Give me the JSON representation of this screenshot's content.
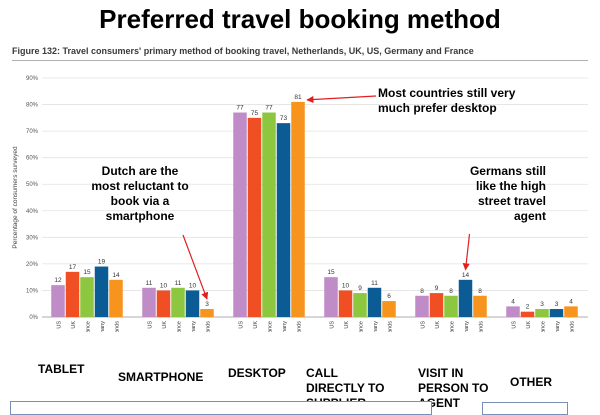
{
  "slide": {
    "title": "Preferred travel booking method",
    "figure_caption": "Figure 132: Travel consumers' primary method of booking travel, Netherlands, UK, US, Germany and France"
  },
  "annotations": {
    "dutch": "Dutch are the most reluctant to book via a smartphone",
    "desktop": "Most countries still very much prefer desktop",
    "germans": "Germans still like the high street travel agent"
  },
  "category_labels": [
    "TABLET",
    "SMARTPHONE",
    "DESKTOP",
    "CALL DIRECTLY TO SUPPLIER",
    "VISIT IN PERSON TO AGENT",
    "OTHER"
  ],
  "chart_data": {
    "type": "bar",
    "ylabel": "Percentage of consumers surveyed",
    "ylim": [
      0,
      90
    ],
    "yticks": [
      "0%",
      "10%",
      "20%",
      "30%",
      "40%",
      "50%",
      "60%",
      "70%",
      "80%",
      "90%"
    ],
    "grid": true,
    "categories": [
      "TABLET",
      "SMARTPHONE",
      "DESKTOP",
      "CALL DIRECTLY TO SUPPLIER",
      "VISIT IN PERSON TO AGENT",
      "OTHER"
    ],
    "country_labels": [
      "US",
      "UK",
      "France",
      "Germany",
      "Netherlands"
    ],
    "series": [
      {
        "name": "US",
        "color": "#c08cc8",
        "values": [
          12,
          11,
          77,
          15,
          8,
          4
        ]
      },
      {
        "name": "UK",
        "color": "#f04e23",
        "values": [
          17,
          10,
          75,
          10,
          9,
          2
        ]
      },
      {
        "name": "France",
        "color": "#8dc63f",
        "values": [
          15,
          11,
          77,
          9,
          8,
          3
        ]
      },
      {
        "name": "Germany",
        "color": "#0b5c94",
        "values": [
          19,
          10,
          73,
          11,
          14,
          3
        ]
      },
      {
        "name": "Netherlands",
        "color": "#f7941d",
        "values": [
          14,
          3,
          81,
          6,
          8,
          4
        ]
      }
    ]
  }
}
